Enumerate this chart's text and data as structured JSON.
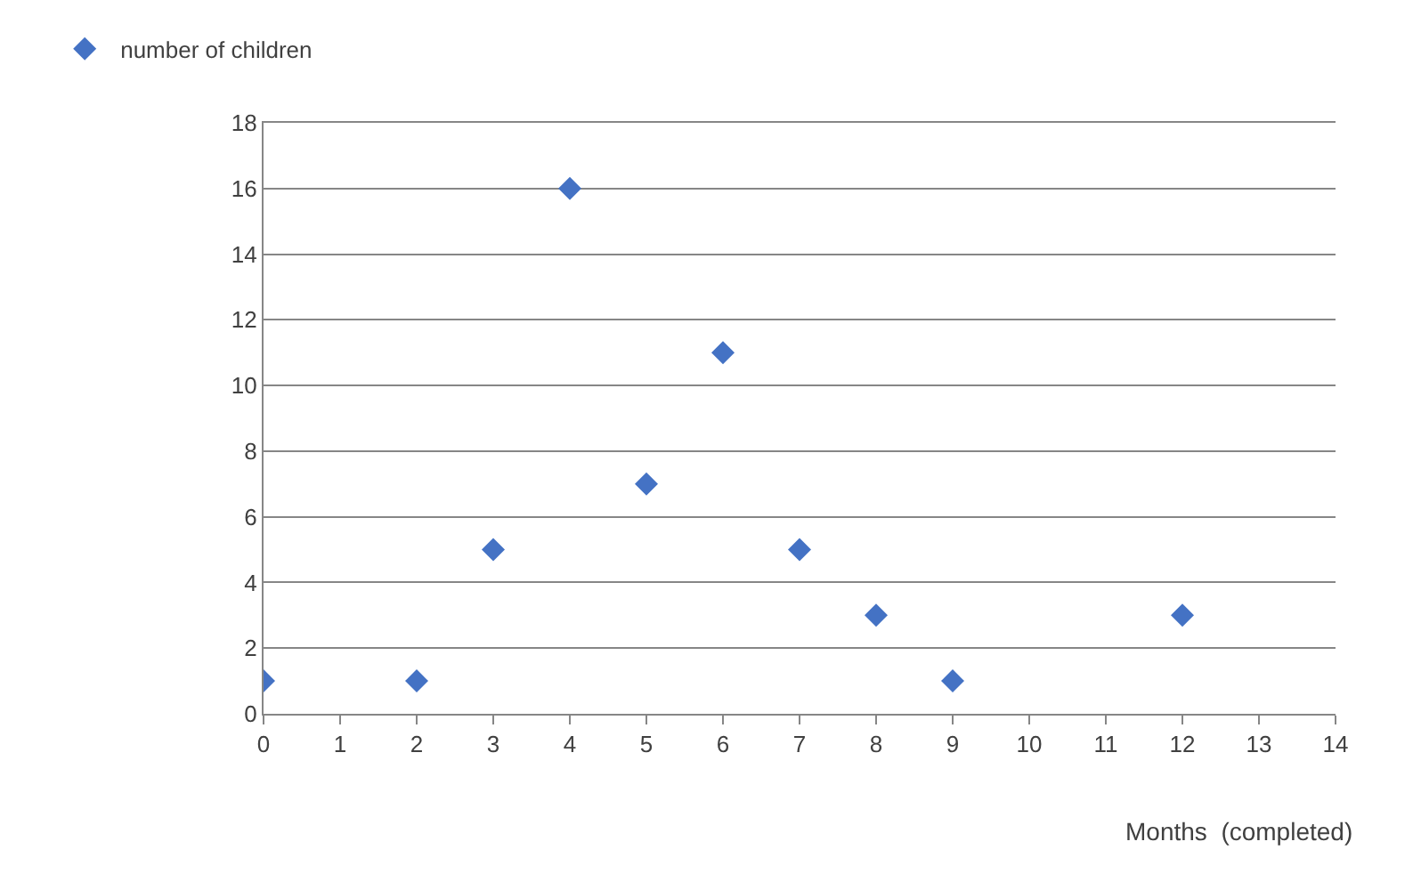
{
  "chart_data": {
    "type": "scatter",
    "xlabel": "Months  (completed)",
    "x": [
      0,
      2,
      3,
      4,
      5,
      6,
      7,
      8,
      9,
      12
    ],
    "series": [
      {
        "name": "number of children",
        "color": "#4472c4",
        "values": [
          1,
          1,
          5,
          16,
          7,
          11,
          5,
          3,
          1,
          3
        ]
      }
    ],
    "xlim": [
      0,
      14
    ],
    "xticks": [
      0,
      1,
      2,
      3,
      4,
      5,
      6,
      7,
      8,
      9,
      10,
      11,
      12,
      13,
      14
    ],
    "ylim": [
      0,
      18
    ],
    "yticks": [
      0,
      2,
      4,
      6,
      8,
      10,
      12,
      14,
      16,
      18
    ],
    "grid": "y",
    "legend": "top left",
    "marker": "diamond"
  }
}
